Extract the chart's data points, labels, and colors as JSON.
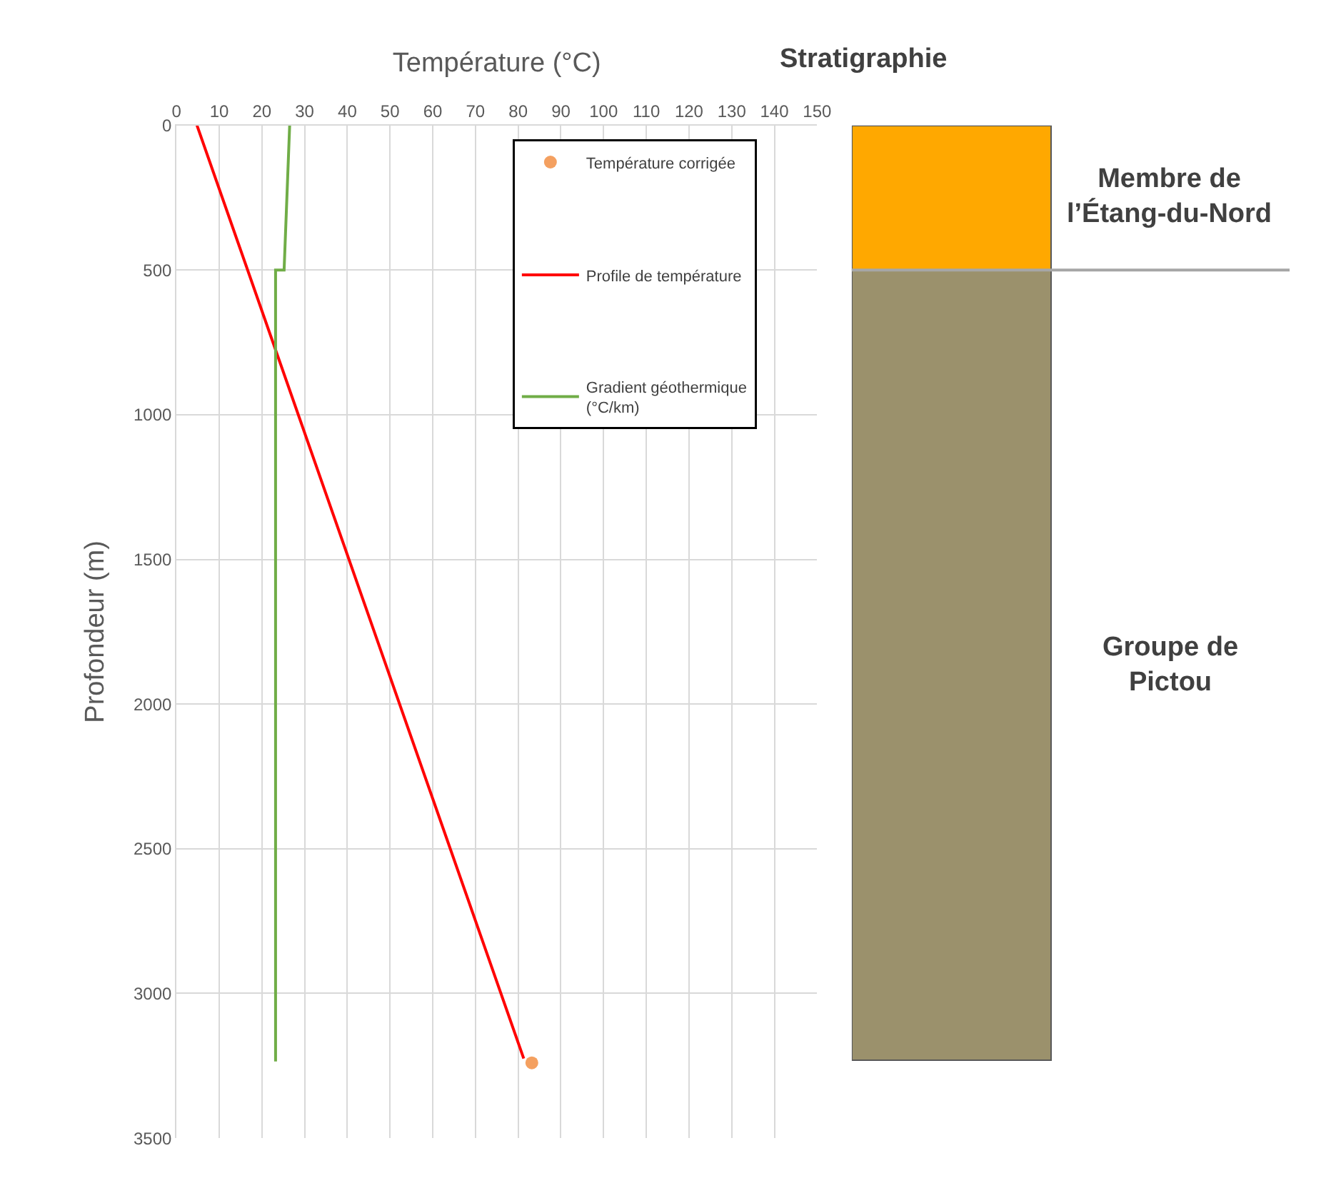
{
  "chart_data": [
    {
      "type": "line",
      "xlabel": "Température (°C)",
      "ylabel": "Profondeur (m)",
      "xlim": [
        0,
        150
      ],
      "xticks": [
        0,
        10,
        20,
        30,
        40,
        50,
        60,
        70,
        80,
        90,
        100,
        110,
        120,
        130,
        140,
        150
      ],
      "ylim": [
        3500,
        0
      ],
      "yticks": [
        0,
        500,
        1000,
        1500,
        2000,
        2500,
        3000,
        3500
      ],
      "grid": true,
      "legend": "top right",
      "series": [
        {
          "name": "Température corrigée",
          "type": "scatter",
          "color": "#f4a060",
          "marker": "circle",
          "x": [
            83.2
          ],
          "values": [
            3240
          ]
        },
        {
          "name": "Profile de température",
          "type": "line",
          "color": "#ff0000",
          "marker": "none",
          "x": [
            4.8,
            81.3
          ],
          "values": [
            0,
            3225
          ]
        },
        {
          "name": "Gradient géothermique\n(°C/km)",
          "type": "line",
          "color": "#70ad47",
          "marker": "none",
          "x": [
            26.5,
            25.2,
            23.2,
            23.2
          ],
          "values": [
            0,
            500,
            500,
            3235
          ]
        }
      ]
    },
    {
      "type": "bar",
      "title": "Stratigraphie",
      "stacked": true,
      "categories": [
        null
      ],
      "ylim": [
        3500,
        0
      ],
      "tick_labels": false,
      "legend": false,
      "ref_lines": [
        {
          "axis": "y",
          "value": 500,
          "color": "#a6a6a6"
        }
      ],
      "series": [
        {
          "name": "Membre de\nl’Étang-du-Nord",
          "color": "#ffa800",
          "values": [
            500
          ]
        },
        {
          "name": "Groupe de\nPictou",
          "color": "#9b916c",
          "values": [
            2730
          ]
        }
      ]
    }
  ]
}
